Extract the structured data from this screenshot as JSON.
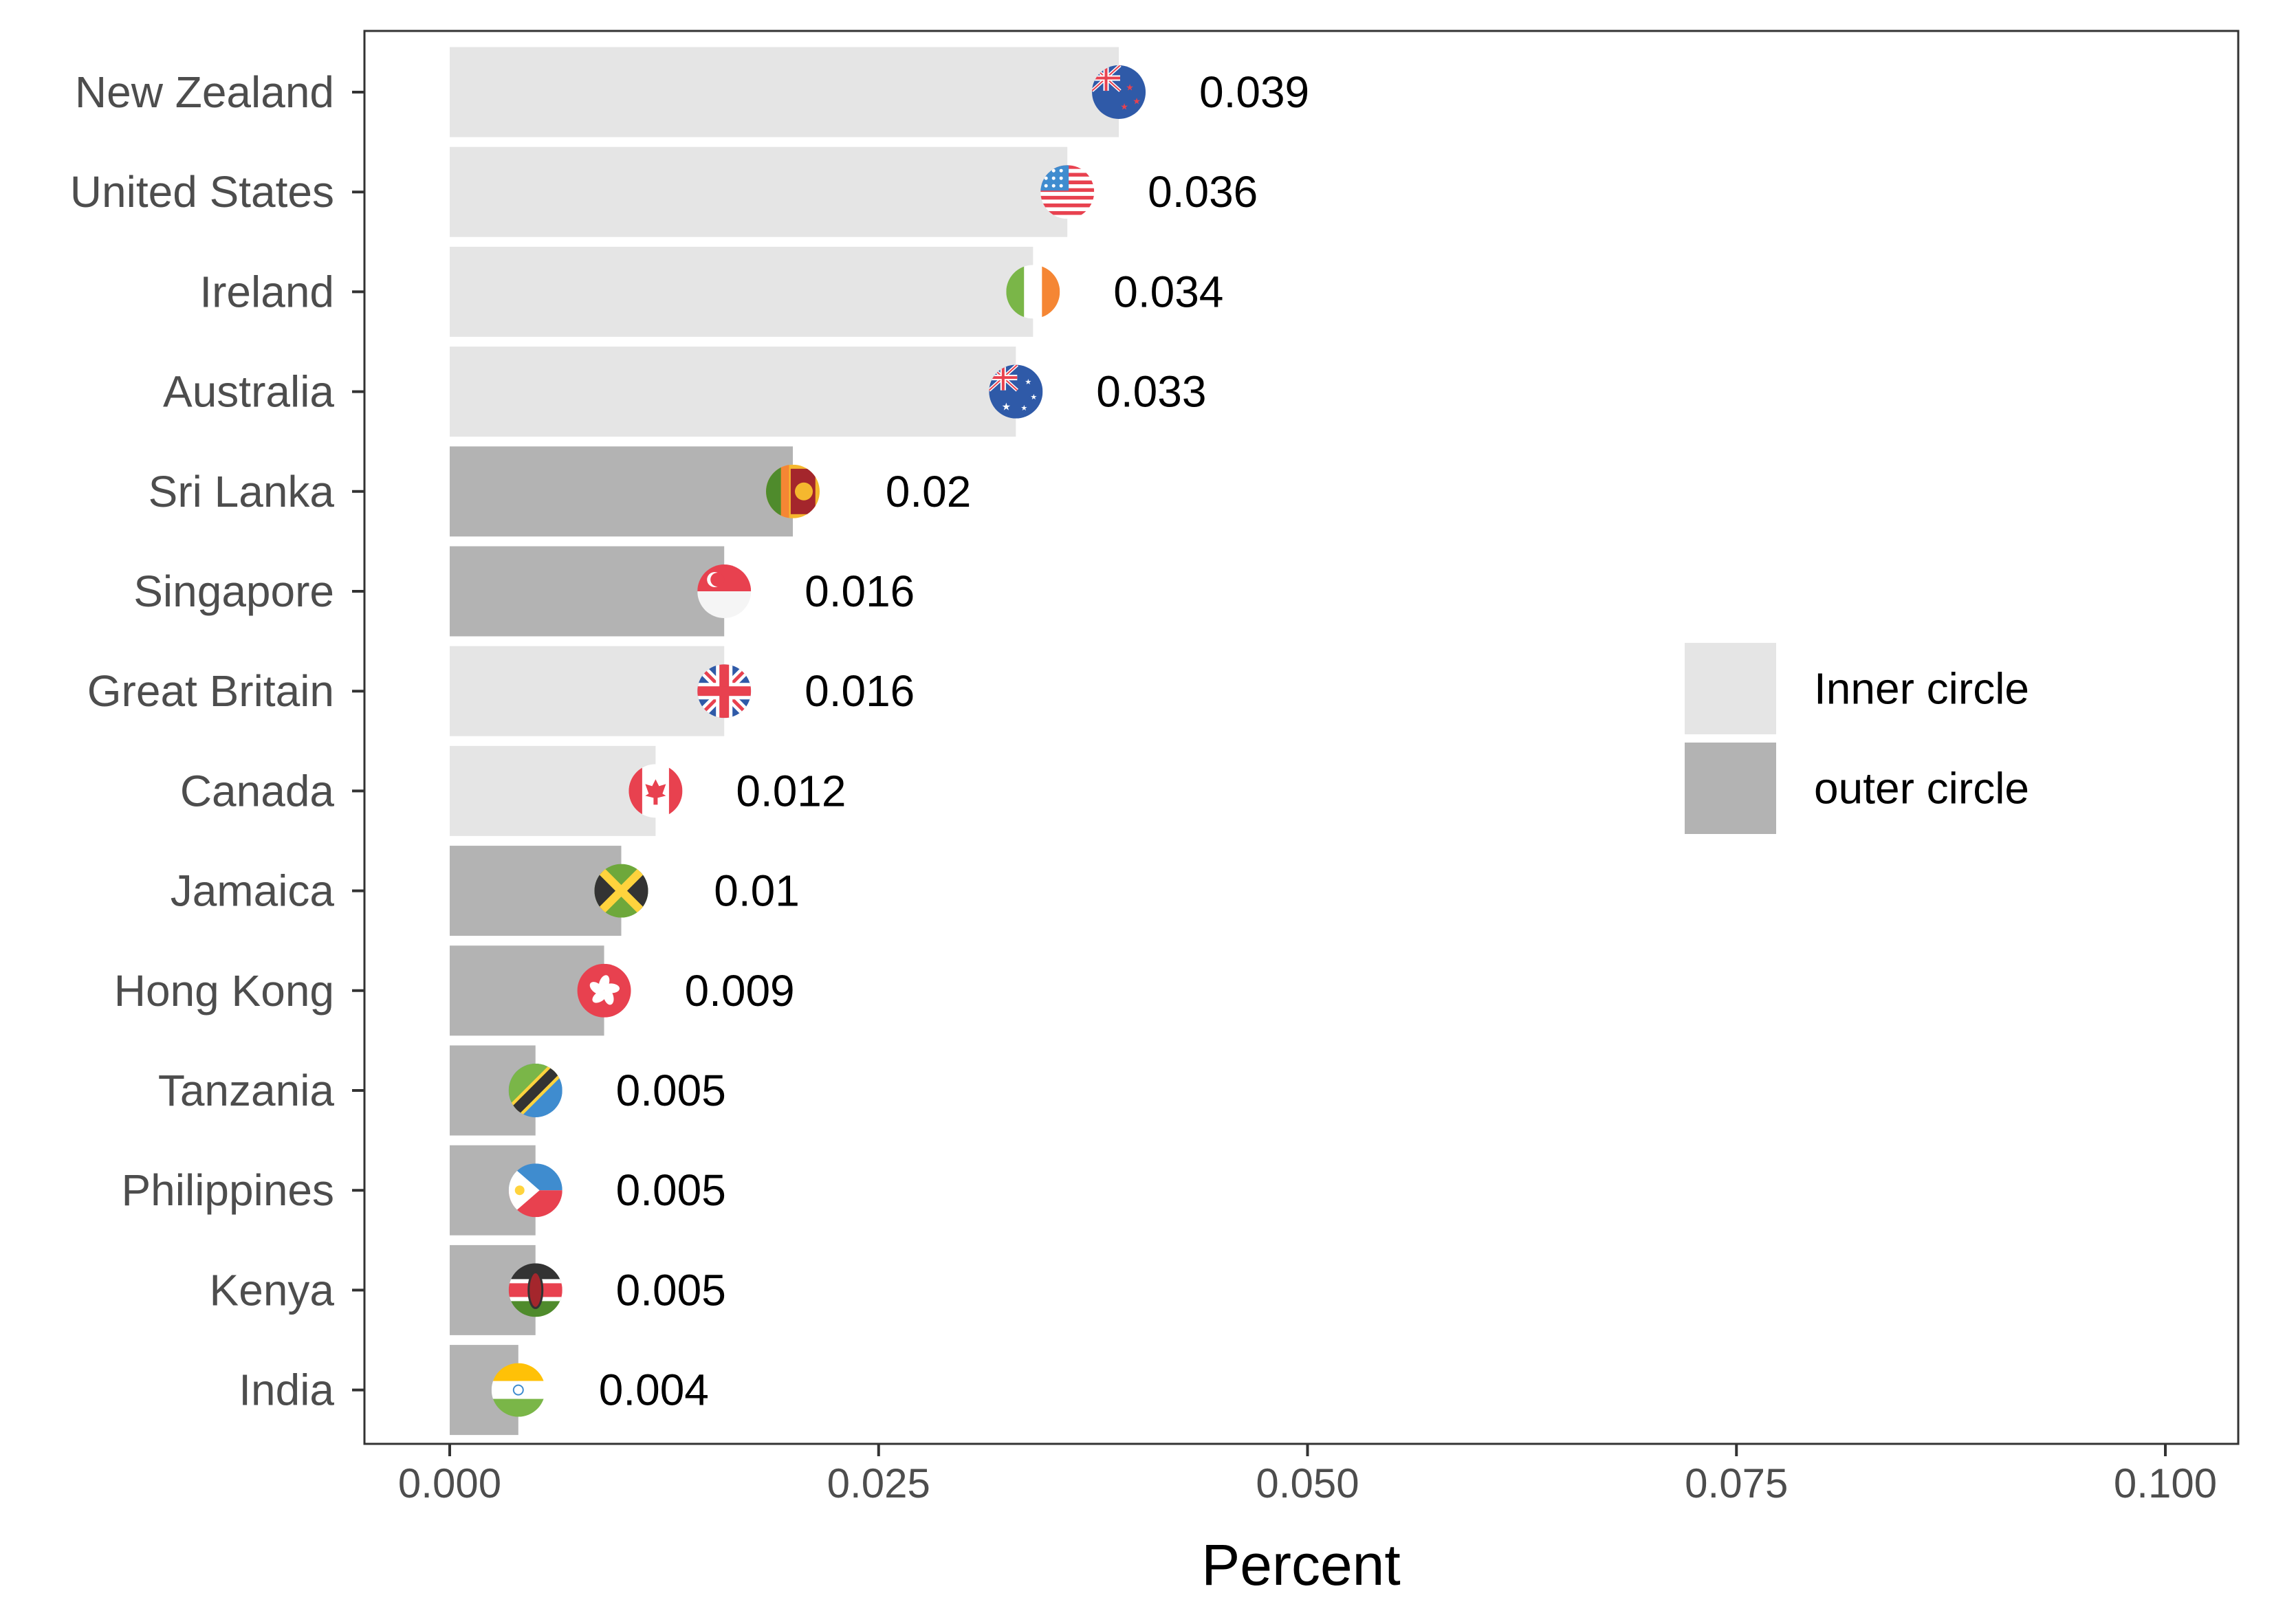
{
  "chart_data": {
    "type": "bar",
    "orientation": "horizontal",
    "xlabel": "Percent",
    "ylabel": "",
    "xlim": [
      0,
      0.1
    ],
    "x_ticks": [
      "0.000",
      "0.025",
      "0.050",
      "0.075",
      "0.100"
    ],
    "x_tick_values": [
      0,
      0.025,
      0.05,
      0.075,
      0.1
    ],
    "grid": false,
    "legend_position": "right",
    "legend": [
      {
        "key": "inner",
        "label": "Inner circle",
        "color": "#e5e5e5"
      },
      {
        "key": "outer",
        "label": "outer circle",
        "color": "#b3b3b3"
      }
    ],
    "categories": [
      "New Zealand",
      "United States",
      "Ireland",
      "Australia",
      "Sri Lanka",
      "Singapore",
      "Great Britain",
      "Canada",
      "Jamaica",
      "Hong Kong",
      "Tanzania",
      "Philippines",
      "Kenya",
      "India"
    ],
    "values": [
      0.039,
      0.036,
      0.034,
      0.033,
      0.02,
      0.016,
      0.016,
      0.012,
      0.01,
      0.009,
      0.005,
      0.005,
      0.005,
      0.004
    ],
    "labels": [
      "0.039",
      "0.036",
      "0.034",
      "0.033",
      "0.02",
      "0.016",
      "0.016",
      "0.012",
      "0.01",
      "0.009",
      "0.005",
      "0.005",
      "0.005",
      "0.004"
    ],
    "groups": [
      "inner",
      "inner",
      "inner",
      "inner",
      "outer",
      "outer",
      "inner",
      "inner",
      "outer",
      "outer",
      "outer",
      "outer",
      "outer",
      "outer"
    ],
    "flags": [
      "new-zealand-flag-icon",
      "united-states-flag-icon",
      "ireland-flag-icon",
      "australia-flag-icon",
      "sri-lanka-flag-icon",
      "singapore-flag-icon",
      "great-britain-flag-icon",
      "canada-flag-icon",
      "jamaica-flag-icon",
      "hong-kong-flag-icon",
      "tanzania-flag-icon",
      "philippines-flag-icon",
      "kenya-flag-icon",
      "india-flag-icon"
    ]
  }
}
